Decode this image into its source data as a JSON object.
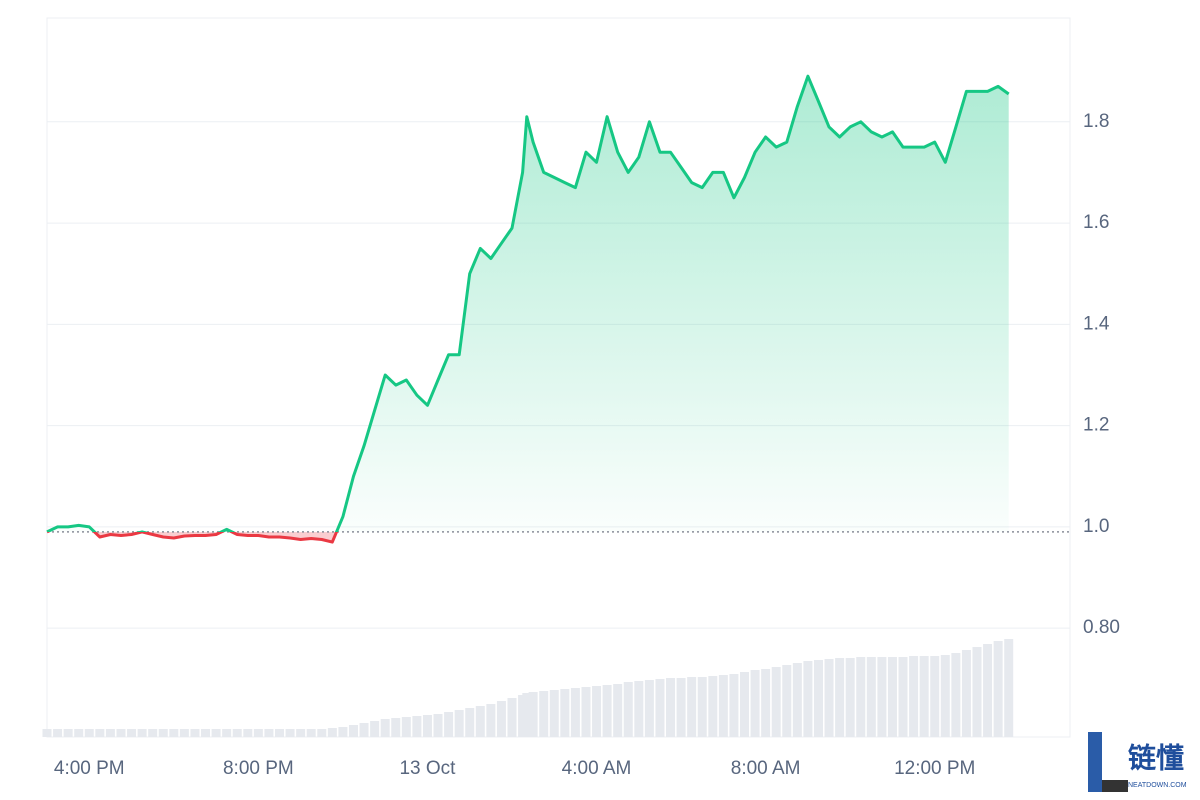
{
  "chart_data": {
    "type": "line",
    "x": [
      15,
      15.25,
      15.5,
      15.75,
      16,
      16.25,
      16.5,
      16.75,
      17,
      17.25,
      17.5,
      17.75,
      18,
      18.25,
      18.5,
      18.75,
      19,
      19.25,
      19.5,
      19.75,
      20,
      20.25,
      20.5,
      20.75,
      21,
      21.25,
      21.5,
      21.75,
      22,
      22.25,
      22.5,
      22.75,
      23,
      23.25,
      23.5,
      23.75,
      24,
      24.25,
      24.5,
      24.75,
      25,
      25.25,
      25.5,
      25.75,
      26,
      26.25,
      26.35,
      26.5,
      26.75,
      27,
      27.25,
      27.5,
      27.75,
      28,
      28.25,
      28.5,
      28.75,
      29,
      29.25,
      29.5,
      29.75,
      30,
      30.25,
      30.5,
      30.75,
      31,
      31.25,
      31.5,
      31.75,
      32,
      32.25,
      32.5,
      32.75,
      33,
      33.25,
      33.5,
      33.75,
      34,
      34.25,
      34.5,
      34.75,
      35,
      35.25,
      35.5,
      35.75,
      36,
      36.25,
      36.5,
      36.75,
      37,
      37.25,
      37.5,
      37.75
    ],
    "values": [
      0.99,
      1.0,
      1.0,
      1.003,
      1.0,
      0.98,
      0.985,
      0.983,
      0.985,
      0.99,
      0.985,
      0.98,
      0.978,
      0.982,
      0.983,
      0.983,
      0.985,
      0.995,
      0.985,
      0.983,
      0.983,
      0.98,
      0.98,
      0.978,
      0.975,
      0.977,
      0.975,
      0.97,
      1.02,
      1.1,
      1.16,
      1.23,
      1.3,
      1.28,
      1.29,
      1.26,
      1.24,
      1.29,
      1.34,
      1.34,
      1.5,
      1.55,
      1.53,
      1.56,
      1.59,
      1.7,
      1.81,
      1.76,
      1.7,
      1.69,
      1.68,
      1.67,
      1.74,
      1.72,
      1.81,
      1.74,
      1.7,
      1.73,
      1.8,
      1.74,
      1.74,
      1.71,
      1.68,
      1.67,
      1.7,
      1.7,
      1.65,
      1.69,
      1.74,
      1.77,
      1.75,
      1.76,
      1.83,
      1.89,
      1.84,
      1.79,
      1.77,
      1.79,
      1.8,
      1.78,
      1.77,
      1.78,
      1.75,
      1.75,
      1.75,
      1.76,
      1.72,
      1.79,
      1.86,
      1.86,
      1.86,
      1.87,
      1.855
    ],
    "volume": [
      8,
      8,
      8,
      8,
      8,
      8,
      8,
      8,
      8,
      8,
      8,
      8,
      8,
      8,
      8,
      8,
      8,
      8,
      8,
      8,
      8,
      8,
      8,
      8,
      8,
      8,
      8,
      9,
      10,
      12,
      14,
      16,
      18,
      19,
      20,
      21,
      22,
      23,
      25,
      27,
      29,
      31,
      33,
      36,
      39,
      42,
      44,
      45,
      46,
      47,
      48,
      49,
      50,
      51,
      52,
      53,
      55,
      56,
      57,
      58,
      59,
      59,
      60,
      60,
      61,
      62,
      63,
      65,
      67,
      68,
      70,
      72,
      74,
      76,
      77,
      78,
      79,
      79,
      80,
      80,
      80,
      80,
      80,
      81,
      81,
      81,
      82,
      84,
      87,
      90,
      93,
      96,
      98
    ],
    "volume_lim": [
      0,
      100
    ],
    "baseline": 0.99,
    "up_color": "#16c784",
    "down_color": "#ea3943",
    "volume_color": "#e6e9ee",
    "xlim": [
      15,
      39.2
    ],
    "xticks": [
      {
        "value": 16,
        "label": "4:00 PM"
      },
      {
        "value": 20,
        "label": "8:00 PM"
      },
      {
        "value": 24,
        "label": "13 Oct"
      },
      {
        "value": 28,
        "label": "4:00 AM"
      },
      {
        "value": 32,
        "label": "8:00 AM"
      },
      {
        "value": 36,
        "label": "12:00 PM"
      }
    ],
    "ylim": [
      0.585,
      2.005
    ],
    "yticks": [
      {
        "value": 0.8,
        "label": "0.80"
      },
      {
        "value": 1.0,
        "label": "1.0"
      },
      1.2,
      1.4,
      1.6,
      1.8
    ],
    "grid": true
  },
  "watermark": {
    "name": "链懂",
    "site": "NEATDOWN.COM"
  }
}
